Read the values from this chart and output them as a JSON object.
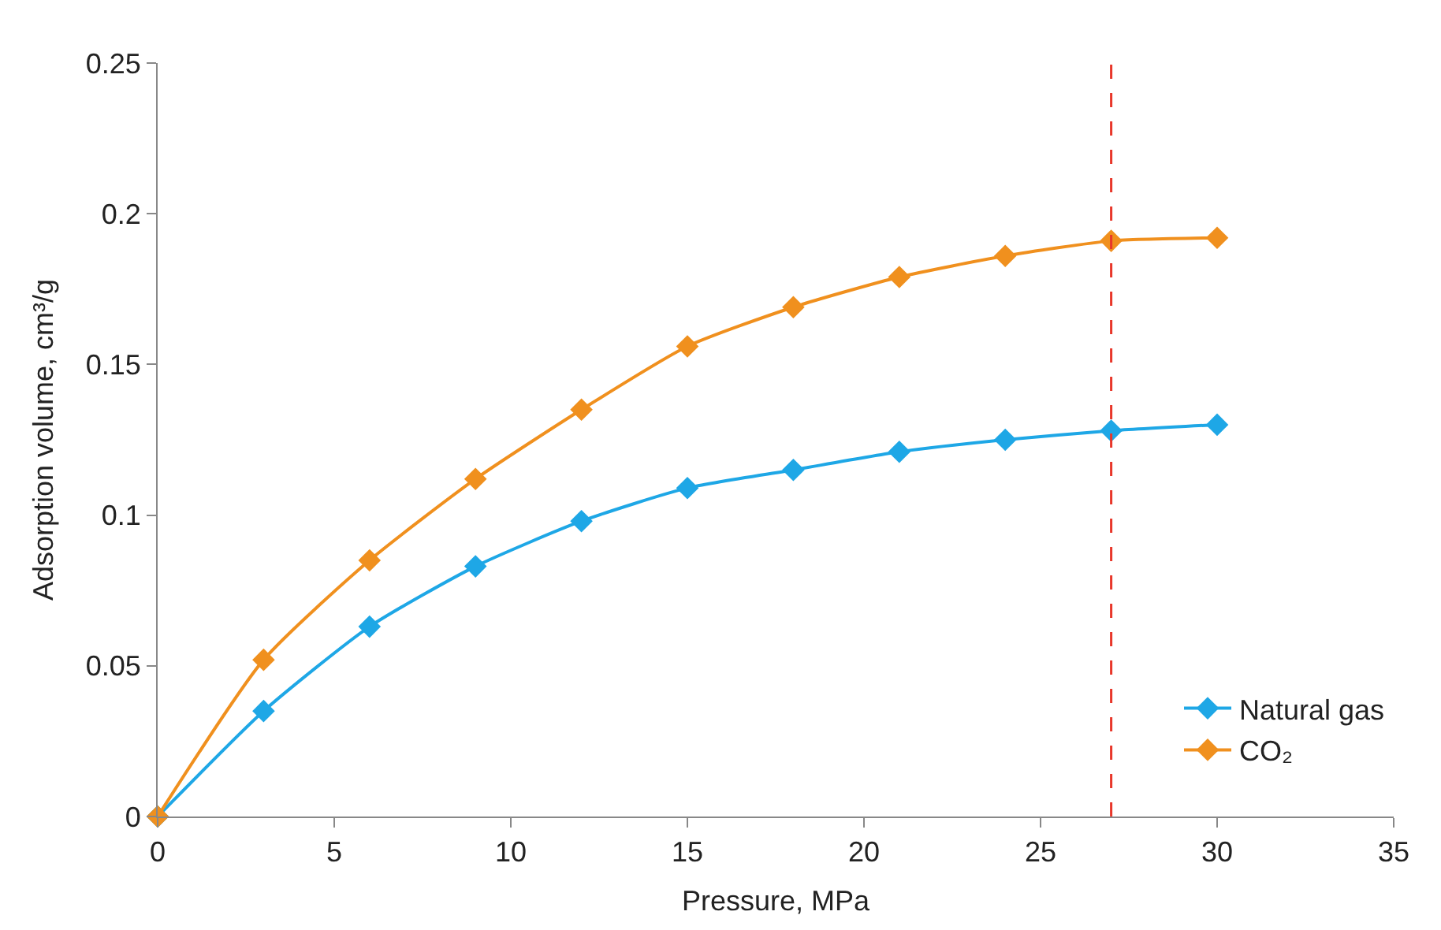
{
  "chart_data": {
    "type": "line",
    "xlabel": "Pressure, MPa",
    "ylabel": "Adsorption volume, cm³/g",
    "x": [
      0,
      3,
      6,
      9,
      12,
      15,
      18,
      21,
      24,
      27,
      30
    ],
    "series": [
      {
        "name": "Natural gas",
        "color": "#1ea7e6",
        "values": [
          0,
          0.035,
          0.063,
          0.083,
          0.098,
          0.109,
          0.115,
          0.121,
          0.125,
          0.128,
          0.13
        ]
      },
      {
        "name": "CO₂",
        "color": "#f0901e",
        "values": [
          0,
          0.052,
          0.085,
          0.112,
          0.135,
          0.156,
          0.169,
          0.179,
          0.186,
          0.191,
          0.192
        ]
      }
    ],
    "xlim": [
      0,
      35
    ],
    "xticks": [
      0,
      5,
      10,
      15,
      20,
      25,
      30,
      35
    ],
    "ylim": [
      0,
      0.25
    ],
    "yticks": [
      0,
      0.05,
      0.1,
      0.15,
      0.2,
      0.25
    ],
    "ref_lines": [
      {
        "axis": "x",
        "value": 27,
        "color": "#e8372a",
        "line_style": "dashed"
      }
    ],
    "legend": "bottom right",
    "marker": "diamond",
    "line_style": "solid"
  }
}
